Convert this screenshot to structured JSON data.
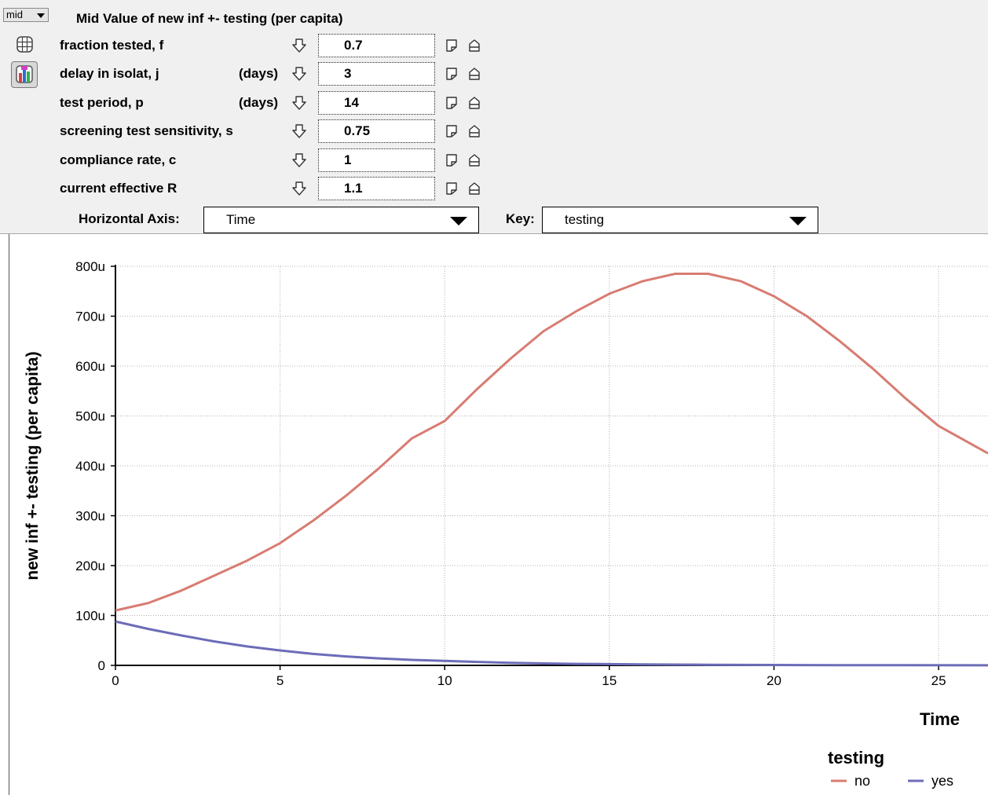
{
  "mode_selector": {
    "label": "mid"
  },
  "panel": {
    "title": "Mid Value of new inf +- testing (per capita)",
    "params": [
      {
        "label": "fraction tested, f",
        "unit": "",
        "value": "0.7"
      },
      {
        "label": "delay in isolat, j",
        "unit": "(days)",
        "value": "3"
      },
      {
        "label": "test period, p",
        "unit": "(days)",
        "value": "14"
      },
      {
        "label": "screening test sensitivity, s",
        "unit": "",
        "value": "0.75"
      },
      {
        "label": "compliance rate, c",
        "unit": "",
        "value": "1"
      },
      {
        "label": "current effective R",
        "unit": "",
        "value": "1.1"
      }
    ],
    "horizontal_axis": {
      "label": "Horizontal Axis:",
      "value": "Time"
    },
    "key": {
      "label": "Key:",
      "value": "testing"
    }
  },
  "icons": {
    "down": "arrow-down-icon",
    "slider_low": "slider-low-icon",
    "slider_high": "slider-high-icon",
    "table": "table-icon",
    "graph": "graph-icon"
  },
  "chart_data": {
    "type": "line",
    "xlabel": "Time",
    "ylabel": "new inf +- testing (per capita)",
    "xlim": [
      0,
      26.5
    ],
    "ylim": [
      0,
      800
    ],
    "x_ticks": [
      "0",
      "5",
      "10",
      "15",
      "20",
      "25"
    ],
    "x_tick_values": [
      0,
      5,
      10,
      15,
      20,
      25
    ],
    "y_ticks": [
      "0",
      "100u",
      "200u",
      "300u",
      "400u",
      "500u",
      "600u",
      "700u",
      "800u"
    ],
    "y_tick_values": [
      0,
      100,
      200,
      300,
      400,
      500,
      600,
      700,
      800
    ],
    "grid": true,
    "legend_title": "testing",
    "legend_position": "bottom-right",
    "series": [
      {
        "name": "no",
        "color": "#d87c72",
        "x": [
          0,
          1,
          2,
          3,
          4,
          5,
          6,
          7,
          8,
          9,
          10,
          11,
          12,
          13,
          14,
          15,
          16,
          17,
          18,
          19,
          20,
          21,
          22,
          23,
          24,
          25,
          26.5
        ],
        "y": [
          110,
          125,
          150,
          180,
          210,
          245,
          290,
          340,
          395,
          455,
          490,
          555,
          615,
          670,
          710,
          745,
          770,
          785,
          785,
          770,
          740,
          700,
          650,
          595,
          535,
          480,
          425
        ]
      },
      {
        "name": "yes",
        "color": "#6c6cb8",
        "x": [
          0,
          1,
          2,
          3,
          4,
          5,
          6,
          7,
          8,
          9,
          10,
          11,
          12,
          13,
          14,
          15,
          16,
          17,
          18,
          20,
          22,
          24,
          26.5
        ],
        "y": [
          88,
          73,
          60,
          48,
          38,
          30,
          23,
          18,
          14,
          11,
          9,
          7,
          5,
          4,
          3,
          2.5,
          2,
          1.5,
          1.2,
          0.8,
          0.5,
          0.3,
          0.2
        ]
      }
    ]
  }
}
